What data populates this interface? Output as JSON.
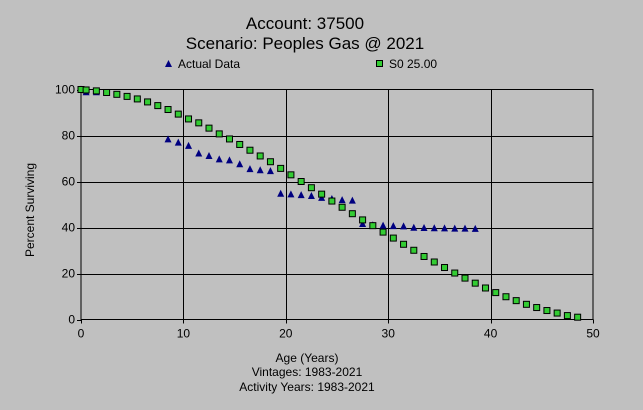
{
  "chart_data": {
    "type": "scatter",
    "title": "Account: 37500",
    "subtitle": "Scenario: Peoples Gas @ 2021",
    "xlabel": "Age (Years)",
    "ylabel": "Percent Surviving",
    "xlim": [
      0,
      50
    ],
    "ylim": [
      0,
      100
    ],
    "xticks": [
      "0",
      "10",
      "20",
      "30",
      "40",
      "50"
    ],
    "yticks": [
      "0",
      "20",
      "40",
      "60",
      "80",
      "100"
    ],
    "grid": true,
    "legend_position": "top",
    "footnotes": [
      "Vintages: 1983-2021",
      "Activity Years: 1983-2021"
    ],
    "series": [
      {
        "name": "Actual Data",
        "marker": "triangle",
        "color": "#000080",
        "points": [
          [
            0,
            100
          ],
          [
            0.5,
            98.8
          ],
          [
            1.5,
            98.8
          ],
          [
            8.5,
            78.3
          ],
          [
            9.5,
            76.9
          ],
          [
            10.5,
            75.5
          ],
          [
            11.5,
            72.2
          ],
          [
            12.5,
            71.1
          ],
          [
            13.5,
            69.6
          ],
          [
            14.5,
            69.2
          ],
          [
            15.5,
            67.5
          ],
          [
            16.5,
            65.4
          ],
          [
            17.5,
            64.9
          ],
          [
            18.5,
            64.5
          ],
          [
            19.5,
            54.7
          ],
          [
            20.5,
            54.4
          ],
          [
            21.5,
            54.1
          ],
          [
            22.5,
            53.7
          ],
          [
            23.5,
            52.9
          ],
          [
            24.5,
            52.4
          ],
          [
            25.5,
            51.9
          ],
          [
            26.5,
            51.7
          ],
          [
            27.5,
            41.5
          ],
          [
            28.5,
            41.0
          ],
          [
            29.5,
            40.8
          ],
          [
            30.5,
            40.6
          ],
          [
            31.5,
            40.5
          ],
          [
            32.5,
            39.9
          ],
          [
            33.5,
            39.8
          ],
          [
            34.5,
            39.7
          ],
          [
            35.5,
            39.6
          ],
          [
            36.5,
            39.5
          ],
          [
            37.5,
            39.5
          ],
          [
            38.5,
            39.4
          ]
        ]
      },
      {
        "name": "S0 25.00",
        "marker": "square",
        "color": "#33cc33",
        "points": [
          [
            0,
            100
          ],
          [
            0.5,
            99.8
          ],
          [
            1.5,
            99.4
          ],
          [
            2.5,
            98.7
          ],
          [
            3.5,
            97.9
          ],
          [
            4.5,
            97.0
          ],
          [
            5.5,
            95.9
          ],
          [
            6.5,
            94.6
          ],
          [
            7.5,
            93.0
          ],
          [
            8.5,
            91.3
          ],
          [
            9.5,
            89.3
          ],
          [
            10.5,
            87.2
          ],
          [
            11.5,
            85.5
          ],
          [
            12.5,
            83.2
          ],
          [
            13.5,
            80.7
          ],
          [
            14.5,
            78.5
          ],
          [
            15.5,
            76.1
          ],
          [
            16.5,
            73.6
          ],
          [
            17.5,
            71.1
          ],
          [
            18.5,
            68.6
          ],
          [
            19.5,
            65.7
          ],
          [
            20.5,
            62.9
          ],
          [
            21.5,
            60.0
          ],
          [
            22.5,
            57.3
          ],
          [
            23.5,
            54.5
          ],
          [
            24.5,
            51.5
          ],
          [
            25.5,
            48.8
          ],
          [
            26.5,
            46.0
          ],
          [
            27.5,
            43.3
          ],
          [
            28.5,
            40.8
          ],
          [
            29.5,
            38.0
          ],
          [
            30.5,
            35.4
          ],
          [
            31.5,
            32.7
          ],
          [
            32.5,
            30.1
          ],
          [
            33.5,
            27.4
          ],
          [
            34.5,
            25.0
          ],
          [
            35.5,
            22.6
          ],
          [
            36.5,
            20.2
          ],
          [
            37.5,
            18.0
          ],
          [
            38.5,
            15.8
          ],
          [
            39.5,
            13.7
          ],
          [
            40.5,
            11.7
          ],
          [
            41.5,
            9.9
          ],
          [
            42.5,
            8.2
          ],
          [
            43.5,
            6.6
          ],
          [
            44.5,
            5.2
          ],
          [
            45.5,
            3.9
          ],
          [
            46.5,
            2.8
          ],
          [
            47.5,
            1.7
          ],
          [
            48.5,
            1.0
          ]
        ]
      }
    ]
  }
}
